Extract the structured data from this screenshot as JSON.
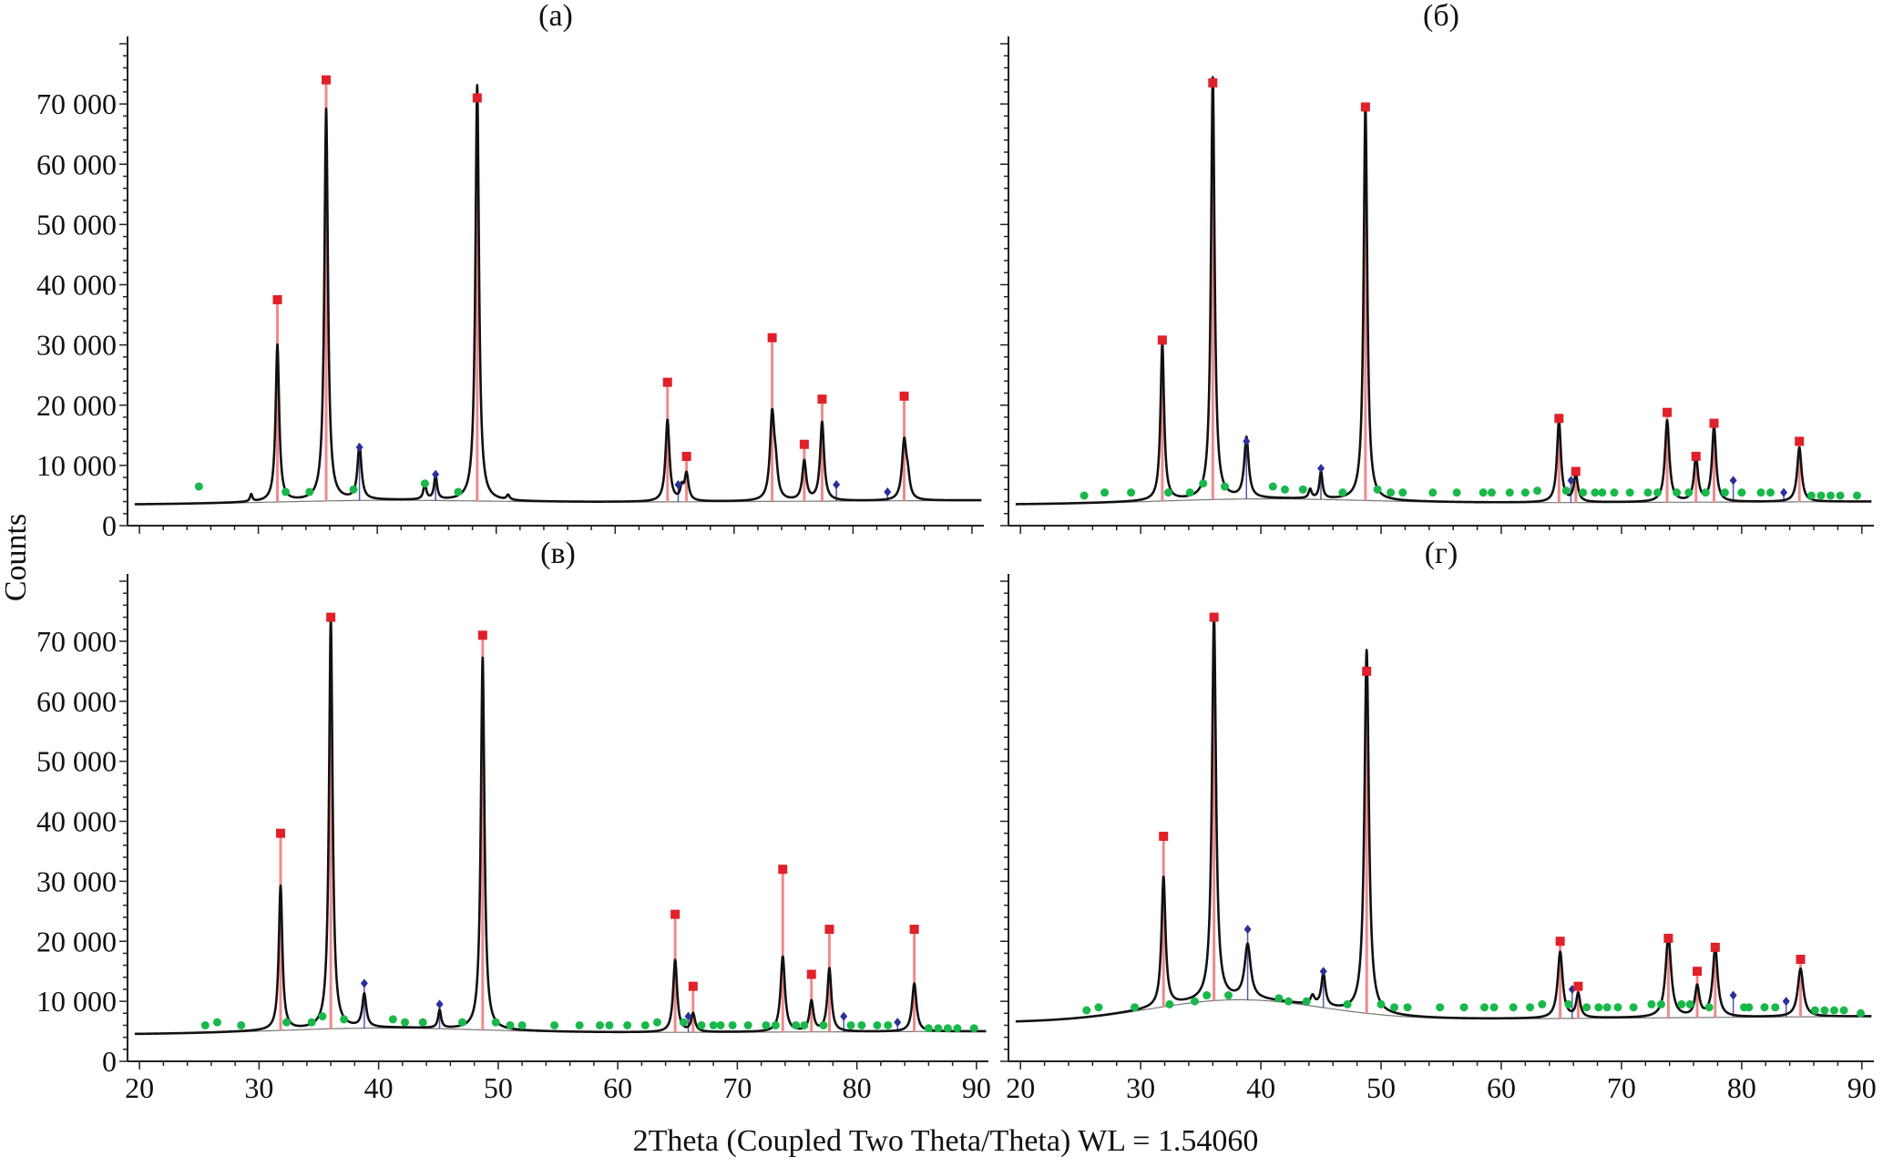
{
  "figure": {
    "shared_ylabel": "Counts",
    "shared_xlabel": "2Theta (Coupled Two Theta/Theta) WL = 1.54060",
    "colors": {
      "pattern": "#111111",
      "phase_main": "#e0202a",
      "phase_main_stick": "#f08a8a",
      "phase_second": "#2a2f9a",
      "phase_minor": "#19b84a"
    }
  },
  "chart_data": [
    {
      "type": "line",
      "title": "(а)",
      "xlim": [
        19,
        91
      ],
      "ylim": [
        0,
        80000
      ],
      "xticks": [
        20,
        30,
        40,
        50,
        60,
        70,
        80,
        90
      ],
      "yticks": [
        0,
        10000,
        20000,
        30000,
        40000,
        50000,
        60000,
        70000
      ],
      "ytick_labels": [
        "0",
        "10 000",
        "20 000",
        "30 000",
        "40 000",
        "50 000",
        "60 000",
        "70 000"
      ],
      "grid": false,
      "background": {
        "start": 3500,
        "end": 4200,
        "hump_center": 40,
        "hump_height": 500,
        "hump_width": 12
      },
      "peaks": [
        {
          "x": 29.4,
          "y": 1200,
          "w": 0.12
        },
        {
          "x": 31.6,
          "y": 26000,
          "w": 0.18
        },
        {
          "x": 35.7,
          "y": 65000,
          "w": 0.18
        },
        {
          "x": 38.5,
          "y": 9000,
          "w": 0.2
        },
        {
          "x": 44.0,
          "y": 2500,
          "w": 0.15
        },
        {
          "x": 44.9,
          "y": 4000,
          "w": 0.15
        },
        {
          "x": 48.4,
          "y": 69000,
          "w": 0.18
        },
        {
          "x": 51.0,
          "y": 800,
          "w": 0.15
        },
        {
          "x": 64.4,
          "y": 13500,
          "w": 0.2
        },
        {
          "x": 65.6,
          "y": 2000,
          "w": 0.15
        },
        {
          "x": 66.0,
          "y": 4500,
          "w": 0.2
        },
        {
          "x": 73.2,
          "y": 14000,
          "w": 0.22
        },
        {
          "x": 73.5,
          "y": 4000,
          "w": 0.2
        },
        {
          "x": 75.9,
          "y": 6500,
          "w": 0.2
        },
        {
          "x": 77.4,
          "y": 13000,
          "w": 0.2
        },
        {
          "x": 84.3,
          "y": 9500,
          "w": 0.22
        },
        {
          "x": 84.6,
          "y": 3000,
          "w": 0.2
        }
      ],
      "phase_main": [
        {
          "x": 31.6,
          "y": 37500
        },
        {
          "x": 35.7,
          "y": 74000
        },
        {
          "x": 48.4,
          "y": 71000
        },
        {
          "x": 64.4,
          "y": 23800
        },
        {
          "x": 66.0,
          "y": 11500
        },
        {
          "x": 73.2,
          "y": 31200
        },
        {
          "x": 75.9,
          "y": 13500
        },
        {
          "x": 77.4,
          "y": 21000
        },
        {
          "x": 84.3,
          "y": 21500
        }
      ],
      "phase_second": [
        {
          "x": 38.5,
          "y": 13000
        },
        {
          "x": 44.9,
          "y": 8500
        },
        {
          "x": 65.3,
          "y": 6800
        },
        {
          "x": 78.6,
          "y": 6800
        },
        {
          "x": 82.9,
          "y": 5600
        }
      ],
      "phase_minor": [
        {
          "x": 25.0,
          "y": 6500
        },
        {
          "x": 32.3,
          "y": 5600
        },
        {
          "x": 34.3,
          "y": 5600
        },
        {
          "x": 38.0,
          "y": 6000
        },
        {
          "x": 44.0,
          "y": 7000
        },
        {
          "x": 46.8,
          "y": 5600
        }
      ]
    },
    {
      "type": "line",
      "title": "(б)",
      "xlim": [
        19,
        91
      ],
      "ylim": [
        0,
        80000
      ],
      "xticks": [
        20,
        30,
        40,
        50,
        60,
        70,
        80,
        90
      ],
      "yticks": [
        0,
        10000,
        20000,
        30000,
        40000,
        50000,
        60000,
        70000
      ],
      "ytick_labels": [],
      "grid": false,
      "background": {
        "start": 3500,
        "end": 4000,
        "hump_center": 40,
        "hump_height": 800,
        "hump_width": 12
      },
      "peaks": [
        {
          "x": 31.8,
          "y": 26000,
          "w": 0.18
        },
        {
          "x": 36.0,
          "y": 70000,
          "w": 0.18
        },
        {
          "x": 38.8,
          "y": 10000,
          "w": 0.22
        },
        {
          "x": 44.1,
          "y": 1500,
          "w": 0.15
        },
        {
          "x": 45.0,
          "y": 4500,
          "w": 0.15
        },
        {
          "x": 48.7,
          "y": 65500,
          "w": 0.18
        },
        {
          "x": 64.8,
          "y": 13500,
          "w": 0.2
        },
        {
          "x": 66.2,
          "y": 4500,
          "w": 0.2
        },
        {
          "x": 73.8,
          "y": 13500,
          "w": 0.22
        },
        {
          "x": 76.2,
          "y": 7500,
          "w": 0.2
        },
        {
          "x": 77.7,
          "y": 12500,
          "w": 0.2
        },
        {
          "x": 84.8,
          "y": 9000,
          "w": 0.22
        }
      ],
      "phase_main": [
        {
          "x": 31.8,
          "y": 30800
        },
        {
          "x": 36.0,
          "y": 73500
        },
        {
          "x": 48.7,
          "y": 69500
        },
        {
          "x": 64.8,
          "y": 17800
        },
        {
          "x": 66.2,
          "y": 9000
        },
        {
          "x": 73.8,
          "y": 18800
        },
        {
          "x": 76.2,
          "y": 11500
        },
        {
          "x": 77.7,
          "y": 17000
        },
        {
          "x": 84.8,
          "y": 14000
        }
      ],
      "phase_second": [
        {
          "x": 38.8,
          "y": 14000
        },
        {
          "x": 45.0,
          "y": 9500
        },
        {
          "x": 65.8,
          "y": 7500
        },
        {
          "x": 79.3,
          "y": 7500
        },
        {
          "x": 83.5,
          "y": 5500
        }
      ],
      "phase_minor": [
        {
          "x": 25.3,
          "y": 5000
        },
        {
          "x": 27.0,
          "y": 5500
        },
        {
          "x": 29.2,
          "y": 5500
        },
        {
          "x": 32.3,
          "y": 5500
        },
        {
          "x": 34.1,
          "y": 5500
        },
        {
          "x": 35.2,
          "y": 7000
        },
        {
          "x": 37.0,
          "y": 6500
        },
        {
          "x": 41.0,
          "y": 6500
        },
        {
          "x": 42.0,
          "y": 6000
        },
        {
          "x": 43.5,
          "y": 6000
        },
        {
          "x": 46.8,
          "y": 5500
        },
        {
          "x": 49.7,
          "y": 6000
        },
        {
          "x": 50.8,
          "y": 5500
        },
        {
          "x": 51.8,
          "y": 5500
        },
        {
          "x": 54.3,
          "y": 5500
        },
        {
          "x": 56.3,
          "y": 5500
        },
        {
          "x": 58.5,
          "y": 5500
        },
        {
          "x": 59.2,
          "y": 5500
        },
        {
          "x": 60.7,
          "y": 5500
        },
        {
          "x": 62.0,
          "y": 5500
        },
        {
          "x": 63.0,
          "y": 5800
        },
        {
          "x": 65.4,
          "y": 5800
        },
        {
          "x": 66.8,
          "y": 5500
        },
        {
          "x": 67.8,
          "y": 5500
        },
        {
          "x": 68.4,
          "y": 5500
        },
        {
          "x": 69.4,
          "y": 5500
        },
        {
          "x": 70.7,
          "y": 5500
        },
        {
          "x": 72.2,
          "y": 5500
        },
        {
          "x": 73.0,
          "y": 5500
        },
        {
          "x": 74.6,
          "y": 5500
        },
        {
          "x": 75.6,
          "y": 5500
        },
        {
          "x": 77.0,
          "y": 5500
        },
        {
          "x": 78.6,
          "y": 5500
        },
        {
          "x": 80.0,
          "y": 5500
        },
        {
          "x": 81.6,
          "y": 5500
        },
        {
          "x": 82.4,
          "y": 5500
        },
        {
          "x": 85.8,
          "y": 5000
        },
        {
          "x": 86.6,
          "y": 5000
        },
        {
          "x": 87.4,
          "y": 5000
        },
        {
          "x": 88.2,
          "y": 5000
        },
        {
          "x": 89.6,
          "y": 5000
        }
      ]
    },
    {
      "type": "line",
      "title": "(в)",
      "xlim": [
        19,
        91
      ],
      "ylim": [
        0,
        80000
      ],
      "xticks": [
        20,
        30,
        40,
        50,
        60,
        70,
        80,
        90
      ],
      "yticks": [
        0,
        10000,
        20000,
        30000,
        40000,
        50000,
        60000,
        70000
      ],
      "ytick_labels": [
        "0",
        "10 000",
        "20 000",
        "30 000",
        "40 000",
        "50 000",
        "60 000",
        "70 000"
      ],
      "grid": false,
      "background": {
        "start": 4500,
        "end": 5000,
        "hump_center": 40,
        "hump_height": 900,
        "hump_width": 12
      },
      "peaks": [
        {
          "x": 31.8,
          "y": 24000,
          "w": 0.18
        },
        {
          "x": 36.0,
          "y": 68000,
          "w": 0.18
        },
        {
          "x": 38.8,
          "y": 5500,
          "w": 0.2
        },
        {
          "x": 45.1,
          "y": 3000,
          "w": 0.15
        },
        {
          "x": 48.7,
          "y": 62000,
          "w": 0.18
        },
        {
          "x": 64.8,
          "y": 12000,
          "w": 0.2
        },
        {
          "x": 66.3,
          "y": 3000,
          "w": 0.2
        },
        {
          "x": 73.8,
          "y": 12500,
          "w": 0.22
        },
        {
          "x": 76.2,
          "y": 5000,
          "w": 0.2
        },
        {
          "x": 77.7,
          "y": 10500,
          "w": 0.2
        },
        {
          "x": 84.8,
          "y": 8000,
          "w": 0.22
        }
      ],
      "phase_main": [
        {
          "x": 31.8,
          "y": 38000
        },
        {
          "x": 36.0,
          "y": 74000
        },
        {
          "x": 48.7,
          "y": 71000
        },
        {
          "x": 64.8,
          "y": 24500
        },
        {
          "x": 66.3,
          "y": 12500
        },
        {
          "x": 73.8,
          "y": 32000
        },
        {
          "x": 76.2,
          "y": 14500
        },
        {
          "x": 77.7,
          "y": 22000
        },
        {
          "x": 84.8,
          "y": 22000
        }
      ],
      "phase_second": [
        {
          "x": 38.8,
          "y": 13000
        },
        {
          "x": 45.1,
          "y": 9500
        },
        {
          "x": 65.9,
          "y": 7500
        },
        {
          "x": 78.9,
          "y": 7500
        },
        {
          "x": 83.4,
          "y": 6500
        }
      ],
      "phase_minor": [
        {
          "x": 25.5,
          "y": 6000
        },
        {
          "x": 26.5,
          "y": 6500
        },
        {
          "x": 28.5,
          "y": 6000
        },
        {
          "x": 32.3,
          "y": 6500
        },
        {
          "x": 34.4,
          "y": 6500
        },
        {
          "x": 35.3,
          "y": 7500
        },
        {
          "x": 37.1,
          "y": 7000
        },
        {
          "x": 41.2,
          "y": 7000
        },
        {
          "x": 42.2,
          "y": 6500
        },
        {
          "x": 43.7,
          "y": 6500
        },
        {
          "x": 47.0,
          "y": 6500
        },
        {
          "x": 49.8,
          "y": 6500
        },
        {
          "x": 51.0,
          "y": 6000
        },
        {
          "x": 52.0,
          "y": 6000
        },
        {
          "x": 54.7,
          "y": 6000
        },
        {
          "x": 56.8,
          "y": 6000
        },
        {
          "x": 58.5,
          "y": 6000
        },
        {
          "x": 59.3,
          "y": 6000
        },
        {
          "x": 60.8,
          "y": 6000
        },
        {
          "x": 62.3,
          "y": 6000
        },
        {
          "x": 63.3,
          "y": 6500
        },
        {
          "x": 65.5,
          "y": 6500
        },
        {
          "x": 67.0,
          "y": 6000
        },
        {
          "x": 68.0,
          "y": 6000
        },
        {
          "x": 68.6,
          "y": 6000
        },
        {
          "x": 69.6,
          "y": 6000
        },
        {
          "x": 70.9,
          "y": 6000
        },
        {
          "x": 72.4,
          "y": 6000
        },
        {
          "x": 73.2,
          "y": 6000
        },
        {
          "x": 74.9,
          "y": 6000
        },
        {
          "x": 75.6,
          "y": 6000
        },
        {
          "x": 77.2,
          "y": 6000
        },
        {
          "x": 79.5,
          "y": 6000
        },
        {
          "x": 80.4,
          "y": 6000
        },
        {
          "x": 81.7,
          "y": 6000
        },
        {
          "x": 82.6,
          "y": 6000
        },
        {
          "x": 86.0,
          "y": 5500
        },
        {
          "x": 86.8,
          "y": 5500
        },
        {
          "x": 87.6,
          "y": 5500
        },
        {
          "x": 88.4,
          "y": 5500
        },
        {
          "x": 89.8,
          "y": 5500
        }
      ]
    },
    {
      "type": "line",
      "title": "(г)",
      "xlim": [
        19,
        91
      ],
      "ylim": [
        0,
        80000
      ],
      "xticks": [
        20,
        30,
        40,
        50,
        60,
        70,
        80,
        90
      ],
      "yticks": [
        0,
        10000,
        20000,
        30000,
        40000,
        50000,
        60000,
        70000
      ],
      "ytick_labels": [],
      "grid": false,
      "background": {
        "start": 6500,
        "end": 7500,
        "hump_center": 38,
        "hump_height": 3500,
        "hump_width": 10
      },
      "peaks": [
        {
          "x": 31.9,
          "y": 21500,
          "w": 0.2
        },
        {
          "x": 36.1,
          "y": 64000,
          "w": 0.2
        },
        {
          "x": 38.9,
          "y": 9000,
          "w": 0.3
        },
        {
          "x": 44.3,
          "y": 1500,
          "w": 0.2
        },
        {
          "x": 45.2,
          "y": 5500,
          "w": 0.2
        },
        {
          "x": 48.8,
          "y": 60500,
          "w": 0.22
        },
        {
          "x": 64.9,
          "y": 11000,
          "w": 0.25
        },
        {
          "x": 66.4,
          "y": 4000,
          "w": 0.2
        },
        {
          "x": 73.9,
          "y": 13500,
          "w": 0.28
        },
        {
          "x": 76.3,
          "y": 5000,
          "w": 0.22
        },
        {
          "x": 77.8,
          "y": 11500,
          "w": 0.25
        },
        {
          "x": 84.9,
          "y": 8000,
          "w": 0.28
        }
      ],
      "phase_main": [
        {
          "x": 31.9,
          "y": 37500
        },
        {
          "x": 36.1,
          "y": 74000
        },
        {
          "x": 48.8,
          "y": 65000
        },
        {
          "x": 64.9,
          "y": 20000
        },
        {
          "x": 66.4,
          "y": 12500
        },
        {
          "x": 73.9,
          "y": 20500
        },
        {
          "x": 76.3,
          "y": 15000
        },
        {
          "x": 77.8,
          "y": 19000
        },
        {
          "x": 84.9,
          "y": 17000
        }
      ],
      "phase_second": [
        {
          "x": 38.9,
          "y": 22000
        },
        {
          "x": 45.2,
          "y": 15000
        },
        {
          "x": 65.9,
          "y": 12000
        },
        {
          "x": 79.3,
          "y": 11000
        },
        {
          "x": 83.7,
          "y": 10000
        }
      ],
      "phase_minor": [
        {
          "x": 25.5,
          "y": 8500
        },
        {
          "x": 26.5,
          "y": 9000
        },
        {
          "x": 29.5,
          "y": 9000
        },
        {
          "x": 32.4,
          "y": 9500
        },
        {
          "x": 34.5,
          "y": 10000
        },
        {
          "x": 35.5,
          "y": 11000
        },
        {
          "x": 37.3,
          "y": 11000
        },
        {
          "x": 41.5,
          "y": 10500
        },
        {
          "x": 42.3,
          "y": 10000
        },
        {
          "x": 43.8,
          "y": 10000
        },
        {
          "x": 47.2,
          "y": 9500
        },
        {
          "x": 50.0,
          "y": 9500
        },
        {
          "x": 51.1,
          "y": 9000
        },
        {
          "x": 52.2,
          "y": 9000
        },
        {
          "x": 54.9,
          "y": 9000
        },
        {
          "x": 56.9,
          "y": 9000
        },
        {
          "x": 58.6,
          "y": 9000
        },
        {
          "x": 59.4,
          "y": 9000
        },
        {
          "x": 61.0,
          "y": 9000
        },
        {
          "x": 62.4,
          "y": 9000
        },
        {
          "x": 63.4,
          "y": 9500
        },
        {
          "x": 65.6,
          "y": 9500
        },
        {
          "x": 67.1,
          "y": 9000
        },
        {
          "x": 68.1,
          "y": 9000
        },
        {
          "x": 68.8,
          "y": 9000
        },
        {
          "x": 69.7,
          "y": 9000
        },
        {
          "x": 71.0,
          "y": 9000
        },
        {
          "x": 72.5,
          "y": 9500
        },
        {
          "x": 73.3,
          "y": 9500
        },
        {
          "x": 75.0,
          "y": 9500
        },
        {
          "x": 75.7,
          "y": 9500
        },
        {
          "x": 77.3,
          "y": 9000
        },
        {
          "x": 80.2,
          "y": 9000
        },
        {
          "x": 80.6,
          "y": 9000
        },
        {
          "x": 81.9,
          "y": 9000
        },
        {
          "x": 82.8,
          "y": 9000
        },
        {
          "x": 86.1,
          "y": 8500
        },
        {
          "x": 86.9,
          "y": 8500
        },
        {
          "x": 87.7,
          "y": 8500
        },
        {
          "x": 88.5,
          "y": 8500
        },
        {
          "x": 89.9,
          "y": 8000
        }
      ]
    }
  ]
}
